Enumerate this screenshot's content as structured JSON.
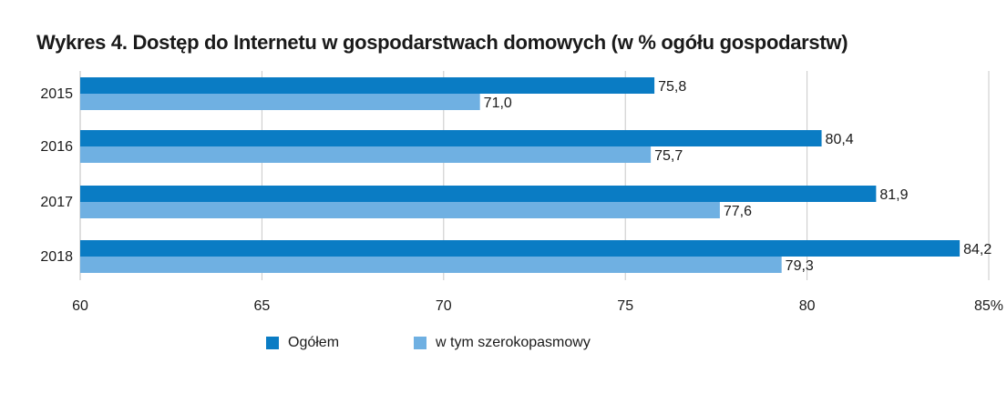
{
  "title": "Wykres 4. Dostęp do Internetu w gospodarstwach domowych (w % ogółu gospodarstw)",
  "legend": {
    "items": [
      {
        "label": "Ogółem",
        "color": "#0a7cc4"
      },
      {
        "label": "w tym szerokopasmowy",
        "color": "#6fb0e2"
      }
    ]
  },
  "chart_data": {
    "type": "bar",
    "orientation": "horizontal",
    "categories": [
      "2015",
      "2016",
      "2017",
      "2018"
    ],
    "series": [
      {
        "name": "Ogółem",
        "values": [
          75.8,
          80.4,
          81.9,
          84.2
        ],
        "labels": [
          "75,8",
          "80,4",
          "81,9",
          "84,2"
        ],
        "color": "#0a7cc4"
      },
      {
        "name": "w tym szerokopasmowy",
        "values": [
          71.0,
          75.7,
          77.6,
          79.3
        ],
        "labels": [
          "71,0",
          "75,7",
          "77,6",
          "79,3"
        ],
        "color": "#6fb0e2"
      }
    ],
    "xlim": [
      60,
      85
    ],
    "xticks": [
      60,
      65,
      70,
      75,
      80,
      85
    ],
    "xtick_labels": [
      "60",
      "65",
      "70",
      "75",
      "80",
      "85%"
    ],
    "grid": true,
    "legend_position": "bottom"
  }
}
